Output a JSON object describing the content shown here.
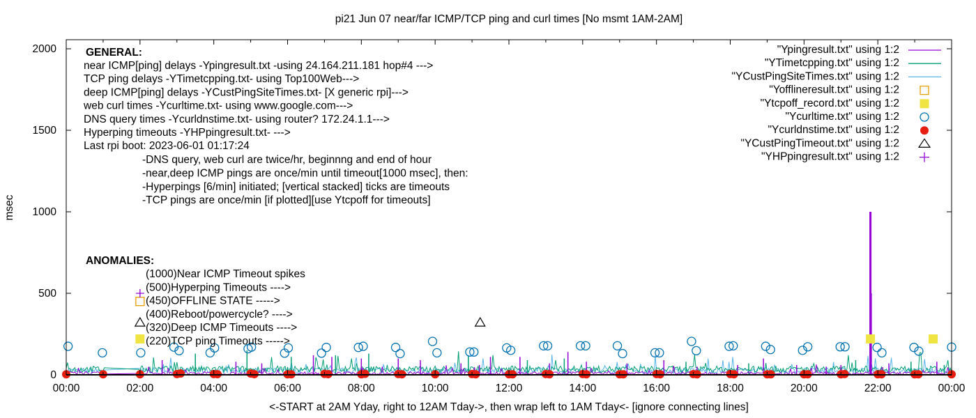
{
  "chart_data": {
    "type": "line",
    "title": "pi21 Jun 07  near/far ICMP/TCP ping and curl times [No msmt 1AM-2AM]",
    "xlabel": "<-START at 2AM Yday, right to 12AM Tday->, then wrap left to 1AM Tday<- [ignore connecting lines]",
    "ylabel": "msec",
    "xlim_hours": [
      0,
      24
    ],
    "ylim": [
      0,
      2050
    ],
    "x_ticks": [
      "00:00",
      "02:00",
      "04:00",
      "06:00",
      "08:00",
      "10:00",
      "12:00",
      "14:00",
      "16:00",
      "18:00",
      "20:00",
      "22:00",
      "00:00"
    ],
    "y_ticks": [
      0,
      500,
      1000,
      1500,
      2000
    ],
    "legend_position": "top-right",
    "legend": [
      {
        "label": "\"Ypingresult.txt\" using 1:2",
        "style": "line",
        "color": "#9400d3"
      },
      {
        "label": "\"YTimetcpping.txt\" using 1:2",
        "style": "line",
        "color": "#009e73"
      },
      {
        "label": "\"YCustPingSiteTimes.txt\" using 1:2",
        "style": "line",
        "color": "#56b4e9"
      },
      {
        "label": "\"Yofflineresult.txt\" using 1:2",
        "style": "open-square",
        "color": "#e69f00"
      },
      {
        "label": "\"Ytcpoff_record.txt\" using 1:2",
        "style": "filled-square",
        "color": "#f0e442"
      },
      {
        "label": "\"Ycurltime.txt\" using 1:2",
        "style": "open-circle",
        "color": "#0072b2"
      },
      {
        "label": "\"Ycurldnstime.txt\" using 1:2",
        "style": "filled-circle",
        "color": "#e51e10"
      },
      {
        "label": "\"YCustPingTimeout.txt\" using 1:2",
        "style": "open-triangle",
        "color": "#000000"
      },
      {
        "label": "\"YHPpingresult.txt\" using 1:2",
        "style": "plus",
        "color": "#9400d3"
      }
    ],
    "series": {
      "ping_baseline_msec": {
        "near_icmp": 8,
        "tcp": 30,
        "deep_icmp": 22
      },
      "near_icmp_spikes": [
        [
          2.6,
          90
        ],
        [
          4.6,
          80
        ],
        [
          5.3,
          70
        ],
        [
          6.7,
          120
        ],
        [
          7.2,
          110
        ],
        [
          8.0,
          100
        ],
        [
          9.0,
          100
        ],
        [
          9.6,
          90
        ],
        [
          10.7,
          70
        ],
        [
          11.2,
          60
        ],
        [
          11.5,
          110
        ],
        [
          12.3,
          110
        ],
        [
          13.1,
          70
        ],
        [
          13.6,
          140
        ],
        [
          14.1,
          80
        ],
        [
          15.2,
          70
        ],
        [
          16.2,
          90
        ],
        [
          17.1,
          50
        ],
        [
          18.2,
          60
        ],
        [
          18.9,
          100
        ],
        [
          19.8,
          60
        ],
        [
          20.6,
          50
        ],
        [
          21.0,
          60
        ],
        [
          21.8,
          1000
        ],
        [
          21.81,
          500
        ],
        [
          22.3,
          70
        ],
        [
          23.6,
          80
        ]
      ],
      "tcp_spikes": [
        [
          3.5,
          130
        ],
        [
          4.9,
          150
        ],
        [
          6.1,
          110
        ],
        [
          7.3,
          120
        ],
        [
          8.2,
          130
        ],
        [
          10.9,
          120
        ],
        [
          12.5,
          90
        ],
        [
          13.5,
          100
        ],
        [
          16.8,
          80
        ],
        [
          18.5,
          70
        ],
        [
          21.4,
          90
        ],
        [
          22.9,
          80
        ],
        [
          23.8,
          60
        ]
      ],
      "curl_times": [
        [
          0.05,
          175
        ],
        [
          0.98,
          135
        ],
        [
          2.02,
          135
        ],
        [
          2.92,
          170
        ],
        [
          3.06,
          148
        ],
        [
          3.9,
          135
        ],
        [
          4.02,
          165
        ],
        [
          4.93,
          160
        ],
        [
          5.02,
          170
        ],
        [
          5.92,
          133
        ],
        [
          6.02,
          165
        ],
        [
          6.92,
          133
        ],
        [
          7.05,
          168
        ],
        [
          7.92,
          168
        ],
        [
          8.05,
          175
        ],
        [
          8.93,
          168
        ],
        [
          9.05,
          130
        ],
        [
          9.93,
          205
        ],
        [
          10.05,
          135
        ],
        [
          10.94,
          140
        ],
        [
          11.05,
          140
        ],
        [
          11.94,
          165
        ],
        [
          12.05,
          150
        ],
        [
          12.94,
          178
        ],
        [
          13.05,
          178
        ],
        [
          13.94,
          178
        ],
        [
          14.08,
          178
        ],
        [
          14.94,
          178
        ],
        [
          15.08,
          130
        ],
        [
          15.96,
          135
        ],
        [
          16.08,
          135
        ],
        [
          16.95,
          205
        ],
        [
          17.08,
          148
        ],
        [
          17.97,
          175
        ],
        [
          18.08,
          178
        ],
        [
          18.96,
          175
        ],
        [
          19.09,
          155
        ],
        [
          19.96,
          150
        ],
        [
          20.1,
          172
        ],
        [
          20.98,
          172
        ],
        [
          21.11,
          172
        ],
        [
          21.98,
          168
        ],
        [
          22.11,
          135
        ],
        [
          22.98,
          168
        ],
        [
          23.11,
          145
        ],
        [
          24.0,
          170
        ]
      ],
      "dns_times": [
        [
          0,
          3
        ],
        [
          1,
          3
        ],
        [
          2,
          3
        ],
        [
          3,
          5
        ],
        [
          3.1,
          8
        ],
        [
          4,
          5
        ],
        [
          4.1,
          4
        ],
        [
          5,
          8
        ],
        [
          5.1,
          4
        ],
        [
          6,
          3
        ],
        [
          6.1,
          3
        ],
        [
          7,
          6
        ],
        [
          7.1,
          4
        ],
        [
          8,
          3
        ],
        [
          8.1,
          6
        ],
        [
          9,
          5
        ],
        [
          9.1,
          3
        ],
        [
          10,
          3
        ],
        [
          11,
          5
        ],
        [
          11.1,
          3
        ],
        [
          12,
          3
        ],
        [
          12.1,
          3
        ],
        [
          13,
          5
        ],
        [
          13.1,
          3
        ],
        [
          14,
          5
        ],
        [
          14.1,
          3
        ],
        [
          15,
          3
        ],
        [
          15.1,
          3
        ],
        [
          16,
          5
        ],
        [
          16.1,
          3
        ],
        [
          17,
          5
        ],
        [
          17.1,
          3
        ],
        [
          18,
          5
        ],
        [
          18.1,
          3
        ],
        [
          19,
          3
        ],
        [
          19.1,
          3
        ],
        [
          20,
          3
        ],
        [
          20.1,
          3
        ],
        [
          21,
          3
        ],
        [
          21.1,
          5
        ],
        [
          22,
          3
        ],
        [
          22.1,
          3
        ],
        [
          23,
          3
        ],
        [
          23.1,
          3
        ],
        [
          24,
          3
        ]
      ],
      "offline": [
        [
          2.0,
          450
        ]
      ],
      "tcpoff": [
        [
          2.0,
          220
        ],
        [
          21.8,
          220
        ],
        [
          23.5,
          220
        ]
      ],
      "deep_icmp_timeouts": [
        [
          2.0,
          320
        ],
        [
          11.22,
          320
        ]
      ],
      "hyperping_timeouts": [
        [
          2.0,
          500
        ]
      ]
    },
    "annotations": {
      "general_heading": "GENERAL:",
      "general_lines": [
        "near ICMP[ping] delays -Ypingresult.txt -using 24.164.211.181 hop#4 --->",
        "TCP ping delays -YTimetcpping.txt- using Top100Web--->",
        "deep ICMP[ping] delays -YCustPingSiteTimes.txt- [X generic rpi]--->",
        "web curl times -Ycurltime.txt- using www.google.com--->",
        "DNS query times -Ycurldnstime.txt- using router? 172.24.1.1--->",
        "Hyperping timeouts -YHPpingresult.txt- --->",
        "Last rpi boot: 2023-06-01 01:17:24"
      ],
      "notes": [
        "-DNS query, web curl are twice/hr, beginnng and end of hour",
        "-near,deep ICMP pings are once/min until timeout[1000 msec], then:",
        "  -Hyperpings [6/min] initiated; [vertical stacked] ticks are timeouts",
        "-TCP pings are once/min [if plotted][use Ytcpoff for timeouts]"
      ],
      "anomalies_heading": "ANOMALIES:",
      "anomalies": [
        "(1000)Near ICMP Timeout spikes",
        "(500)Hyperping Timeouts ---->",
        "(450)OFFLINE STATE ----->",
        "(400)Reboot/powercycle? ---->",
        "(320)Deep ICMP Timeouts ---->",
        "(220)TCP ping Timeouts ----->"
      ]
    }
  }
}
